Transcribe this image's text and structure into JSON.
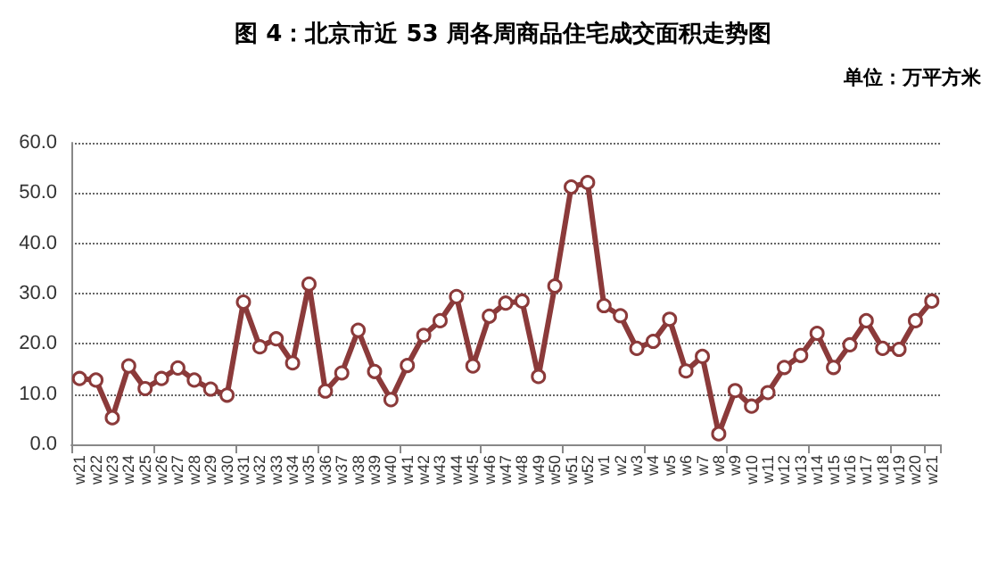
{
  "chart_data": {
    "type": "line",
    "title": "图 4：北京市近 53 周各周商品住宅成交面积走势图",
    "ylabel": "单位：万平方米",
    "categories": [
      "w21",
      "w22",
      "w23",
      "w24",
      "w25",
      "w26",
      "w27",
      "w28",
      "w29",
      "w30",
      "w31",
      "w32",
      "w33",
      "w34",
      "w35",
      "w36",
      "w37",
      "w38",
      "w39",
      "w40",
      "w41",
      "w42",
      "w43",
      "w44",
      "w45",
      "w46",
      "w47",
      "w48",
      "w49",
      "w50",
      "w51",
      "w52",
      "w1",
      "w2",
      "w3",
      "w4",
      "w5",
      "w6",
      "w7",
      "w8",
      "w9",
      "w10",
      "w11",
      "w12",
      "w13",
      "w14",
      "w15",
      "w16",
      "w17",
      "w18",
      "w19",
      "w20",
      "w21"
    ],
    "series": [
      {
        "color": "#8b3a3a",
        "values": [
          13.1,
          12.8,
          5.3,
          15.6,
          11.1,
          13.1,
          15.2,
          12.8,
          11.0,
          9.8,
          28.3,
          19.4,
          21.0,
          16.2,
          31.9,
          10.6,
          14.2,
          22.7,
          14.5,
          8.9,
          15.7,
          21.7,
          24.6,
          29.4,
          15.6,
          25.5,
          28.1,
          28.5,
          13.5,
          31.5,
          51.2,
          52.1,
          27.6,
          25.6,
          19.1,
          20.5,
          24.9,
          14.6,
          17.5,
          2.1,
          10.7,
          7.6,
          10.3,
          15.3,
          17.7,
          22.1,
          15.3,
          19.8,
          24.6,
          19.1,
          18.9,
          24.6,
          28.5
        ]
      }
    ],
    "ylim": [
      0,
      60
    ],
    "yticks": [
      {
        "value": 0,
        "label": "0.0"
      },
      {
        "value": 10,
        "label": "10.0"
      },
      {
        "value": 20,
        "label": "20.0"
      },
      {
        "value": 30,
        "label": "30.0"
      },
      {
        "value": 40,
        "label": "40.0"
      },
      {
        "value": 50,
        "label": "50.0"
      },
      {
        "value": 60,
        "label": "60.0"
      }
    ],
    "grid": "y",
    "marker": "circle",
    "line_style": "solid"
  }
}
